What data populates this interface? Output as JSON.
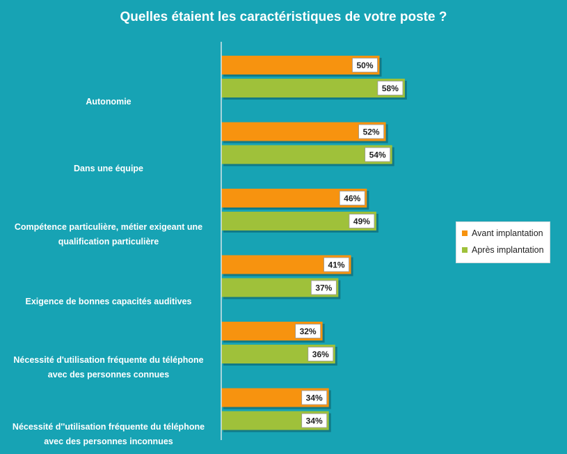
{
  "title": "Quelles étaient les caractéristiques de votre poste ?",
  "colors": {
    "background": "#17a3b4",
    "avant": "#f7930f",
    "apres": "#9fc13a",
    "axis": "#d9e6ea"
  },
  "chart_data": {
    "type": "bar",
    "orientation": "horizontal",
    "categories": [
      [
        "Autonomie"
      ],
      [
        "Dans une équipe"
      ],
      [
        "Compétence particulière, métier exigeant une",
        "qualification particulière"
      ],
      [
        "Exigence de bonnes capacités auditives"
      ],
      [
        "Nécessité d'utilisation fréquente du téléphone",
        "avec des personnes connues"
      ],
      [
        "Nécessité d''utilisation fréquente du téléphone",
        "avec des personnes inconnues"
      ]
    ],
    "series": [
      {
        "name": "Avant implantation",
        "values": [
          50,
          52,
          46,
          41,
          32,
          34
        ],
        "labels": [
          "50%",
          "52%",
          "46%",
          "41%",
          "32%",
          "34%"
        ]
      },
      {
        "name": "Après implantation",
        "values": [
          58,
          54,
          49,
          37,
          36,
          34
        ],
        "labels": [
          "58%",
          "54%",
          "49%",
          "37%",
          "36%",
          "34%"
        ]
      }
    ],
    "xlim": [
      0,
      100
    ],
    "legend_position": "right",
    "grid": false
  }
}
